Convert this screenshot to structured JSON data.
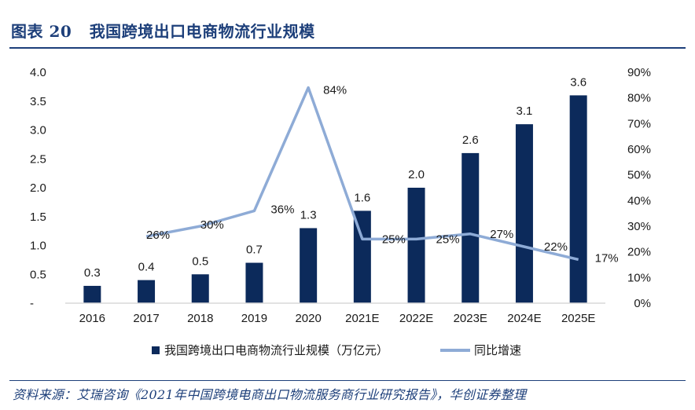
{
  "figure": {
    "label": "图表 20",
    "title": "我国跨境出口电商物流行业规模",
    "source": "资料来源：艾瑞咨询《2021年中国跨境电商出口物流服务商行业研究报告》，华创证券整理"
  },
  "colors": {
    "bar": "#0c2a5b",
    "line": "#8eabd6",
    "title": "#1d3f7a",
    "axis": "#d9d9d9"
  },
  "chart_data": {
    "type": "bar",
    "categories": [
      "2016",
      "2017",
      "2018",
      "2019",
      "2020",
      "2021E",
      "2022E",
      "2023E",
      "2024E",
      "2025E"
    ],
    "series": [
      {
        "name": "我国跨境出口电商物流行业规模（万亿元）",
        "type": "bar",
        "axis": "left",
        "values": [
          0.3,
          0.4,
          0.5,
          0.7,
          1.3,
          1.6,
          2.0,
          2.6,
          3.1,
          3.6
        ],
        "labels": [
          "0.3",
          "0.4",
          "0.5",
          "0.7",
          "1.3",
          "1.6",
          "2.0",
          "2.6",
          "3.1",
          "3.6"
        ]
      },
      {
        "name": "同比增速",
        "type": "line",
        "axis": "right",
        "values": [
          null,
          26,
          30,
          36,
          84,
          25,
          25,
          27,
          22,
          17
        ],
        "labels": [
          null,
          "26%",
          "30%",
          "36%",
          "84%",
          "25%",
          "25%",
          "27%",
          "22%",
          "17%"
        ]
      }
    ],
    "ylim_left": [
      0,
      4.0
    ],
    "yticks_left": [
      "-",
      "0.5",
      "1.0",
      "1.5",
      "2.0",
      "2.5",
      "3.0",
      "3.5",
      "4.0"
    ],
    "ylim_right": [
      0,
      90
    ],
    "yticks_right": [
      "0%",
      "10%",
      "20%",
      "30%",
      "40%",
      "50%",
      "60%",
      "70%",
      "80%",
      "90%"
    ],
    "grid": false,
    "legend_position": "bottom"
  }
}
